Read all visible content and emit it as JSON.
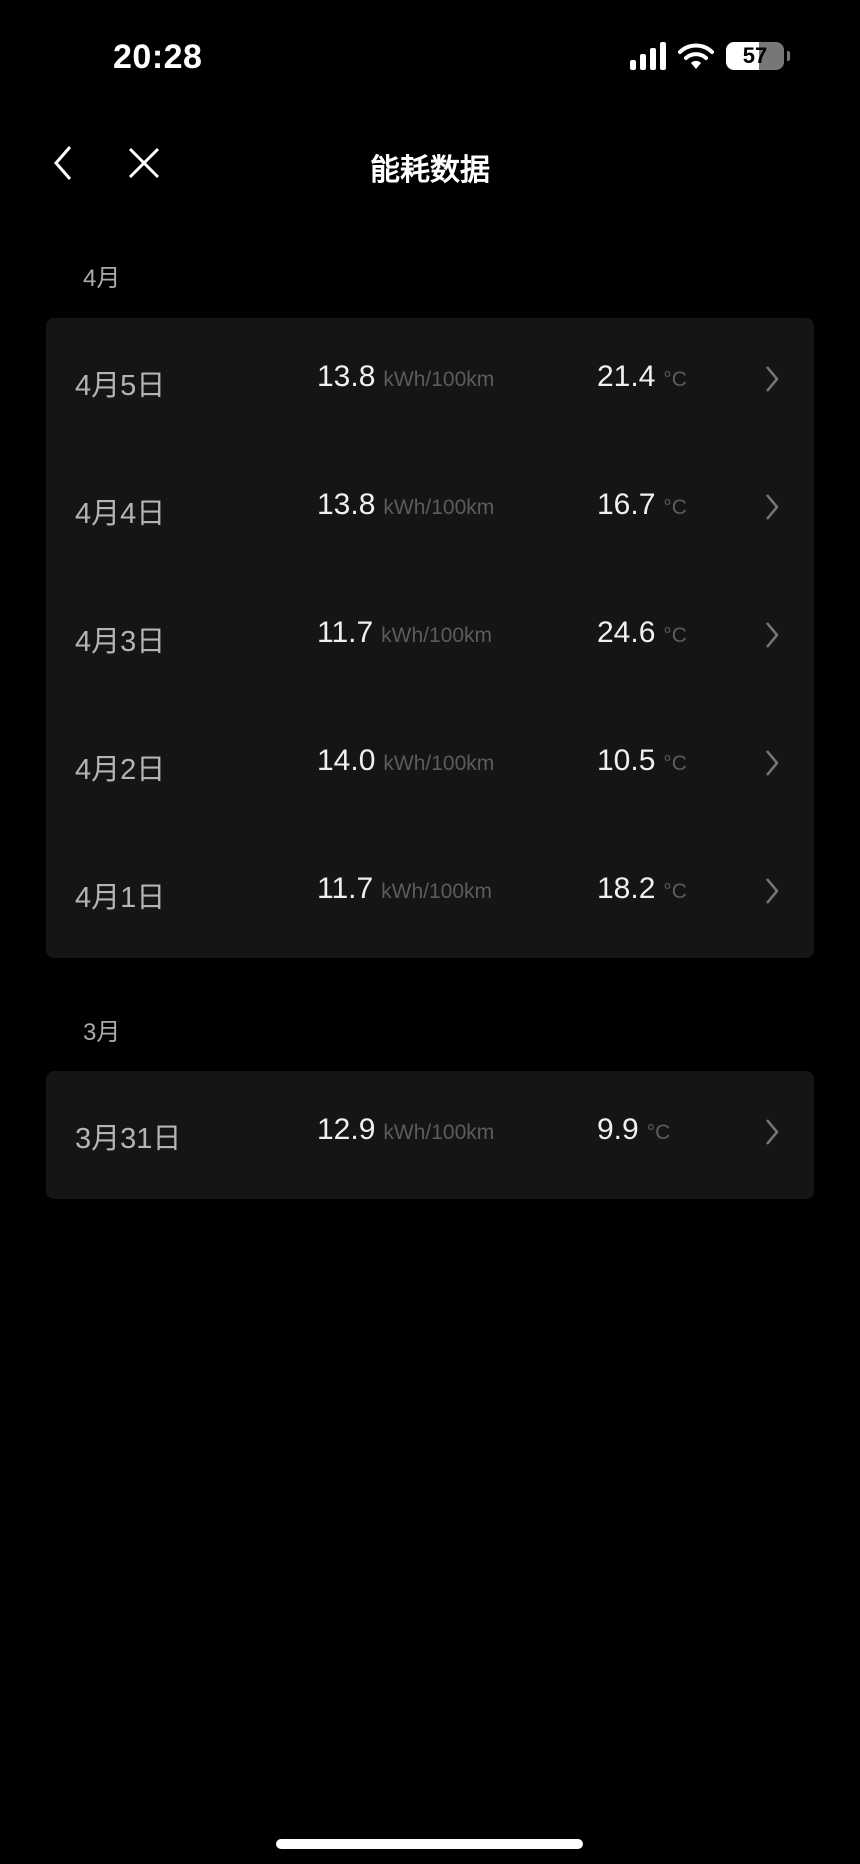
{
  "status": {
    "time": "20:28",
    "battery": "57"
  },
  "header": {
    "title": "能耗数据"
  },
  "sections": [
    {
      "month": "4月",
      "rows": [
        {
          "date": "4月5日",
          "consumption": "13.8",
          "unit": "kWh/100km",
          "temp": "21.4",
          "temp_unit": "°C"
        },
        {
          "date": "4月4日",
          "consumption": "13.8",
          "unit": "kWh/100km",
          "temp": "16.7",
          "temp_unit": "°C"
        },
        {
          "date": "4月3日",
          "consumption": "11.7",
          "unit": "kWh/100km",
          "temp": "24.6",
          "temp_unit": "°C"
        },
        {
          "date": "4月2日",
          "consumption": "14.0",
          "unit": "kWh/100km",
          "temp": "10.5",
          "temp_unit": "°C"
        },
        {
          "date": "4月1日",
          "consumption": "11.7",
          "unit": "kWh/100km",
          "temp": "18.2",
          "temp_unit": "°C"
        }
      ]
    },
    {
      "month": "3月",
      "rows": [
        {
          "date": "3月31日",
          "consumption": "12.9",
          "unit": "kWh/100km",
          "temp": "9.9",
          "temp_unit": "°C"
        }
      ]
    }
  ]
}
